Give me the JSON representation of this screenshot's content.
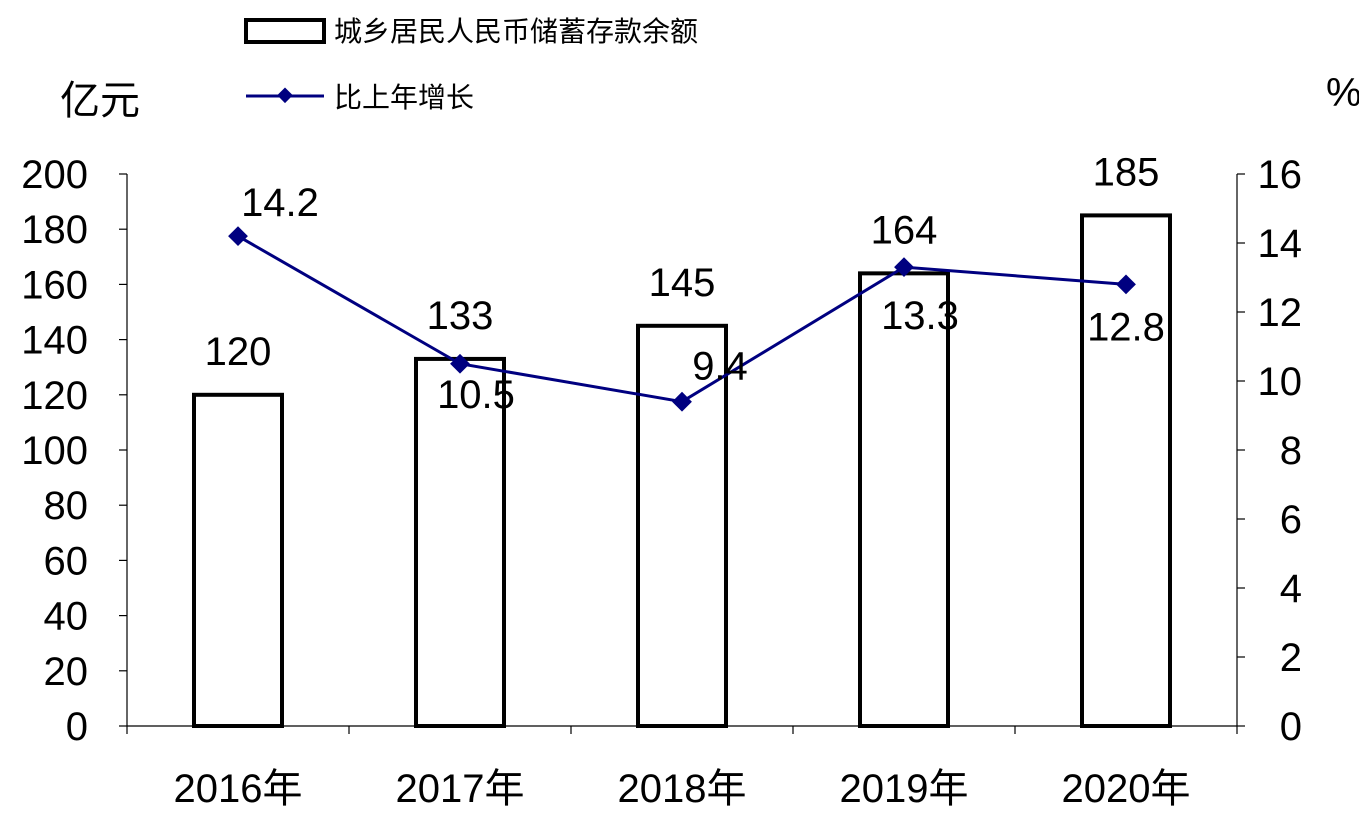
{
  "chart_data": {
    "type": "bar",
    "categories": [
      "2016年",
      "2017年",
      "2018年",
      "2019年",
      "2020年"
    ],
    "series": [
      {
        "name": "城乡居民人民币储蓄存款余额",
        "type": "bar",
        "axis": "left",
        "values": [
          120,
          133,
          145,
          164,
          185
        ],
        "color": "#000000",
        "fill": "#ffffff"
      },
      {
        "name": "比上年增长",
        "type": "line",
        "axis": "right",
        "values": [
          14.2,
          10.5,
          9.4,
          13.3,
          12.8
        ],
        "color": "#000080",
        "marker": "diamond"
      }
    ],
    "y_left": {
      "unit_label": "亿元",
      "range": [
        0,
        200
      ],
      "ticks": [
        "0",
        "20",
        "40",
        "60",
        "80",
        "100",
        "120",
        "140",
        "160",
        "180",
        "200"
      ]
    },
    "y_right": {
      "unit_label": "%",
      "range": [
        0,
        16
      ],
      "ticks": [
        "0",
        "2",
        "4",
        "6",
        "8",
        "10",
        "12",
        "14",
        "16"
      ]
    },
    "bar_labels": [
      "120",
      "133",
      "145",
      "164",
      "185"
    ],
    "line_labels": [
      "14.2",
      "10.5",
      "9.4",
      "13.3",
      "12.8"
    ],
    "grid": false,
    "legend_position": "top"
  }
}
